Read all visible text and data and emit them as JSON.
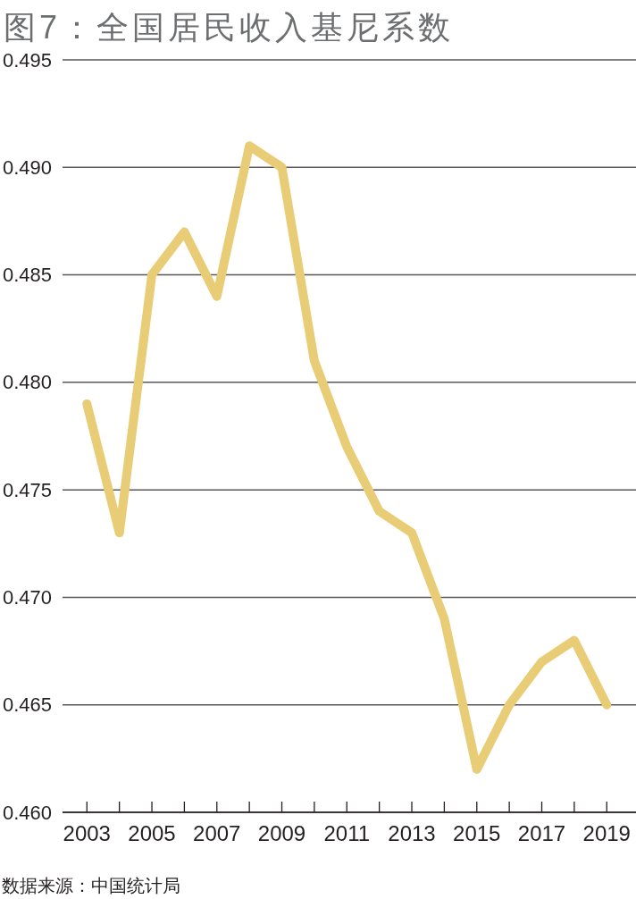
{
  "chart_data": {
    "type": "line",
    "title": "图7：全国居民收入基尼系数",
    "x": [
      2003,
      2004,
      2005,
      2006,
      2007,
      2008,
      2009,
      2010,
      2011,
      2012,
      2013,
      2014,
      2015,
      2016,
      2017,
      2018,
      2019
    ],
    "series": [
      {
        "color": "#e8cd76",
        "values": [
          0.479,
          0.473,
          0.485,
          0.487,
          0.484,
          0.491,
          0.49,
          0.481,
          0.477,
          0.474,
          0.473,
          0.469,
          0.462,
          0.465,
          0.467,
          0.468,
          0.465
        ]
      }
    ],
    "xlim": [
      2002.25,
      2019.9
    ],
    "xticks": [
      2003,
      {
        "value": 2004,
        "label": null
      },
      2005,
      {
        "value": 2006,
        "label": null
      },
      2007,
      {
        "value": 2008,
        "label": null
      },
      2009,
      {
        "value": 2010,
        "label": null
      },
      2011,
      {
        "value": 2012,
        "label": null
      },
      2013,
      {
        "value": 2014,
        "label": null
      },
      2015,
      {
        "value": 2016,
        "label": null
      },
      2017,
      {
        "value": 2018,
        "label": null
      },
      2019
    ],
    "ylim": [
      0.46,
      0.495
    ],
    "yticks": [
      {
        "value": 0.46,
        "label": "0.460"
      },
      0.465,
      {
        "value": 0.47,
        "label": "0.470"
      },
      0.475,
      {
        "value": 0.48,
        "label": "0.480"
      },
      0.485,
      {
        "value": 0.49,
        "label": "0.490"
      },
      0.495
    ],
    "grid": "y",
    "annotations": [
      "数据来源：中国统计局"
    ]
  }
}
